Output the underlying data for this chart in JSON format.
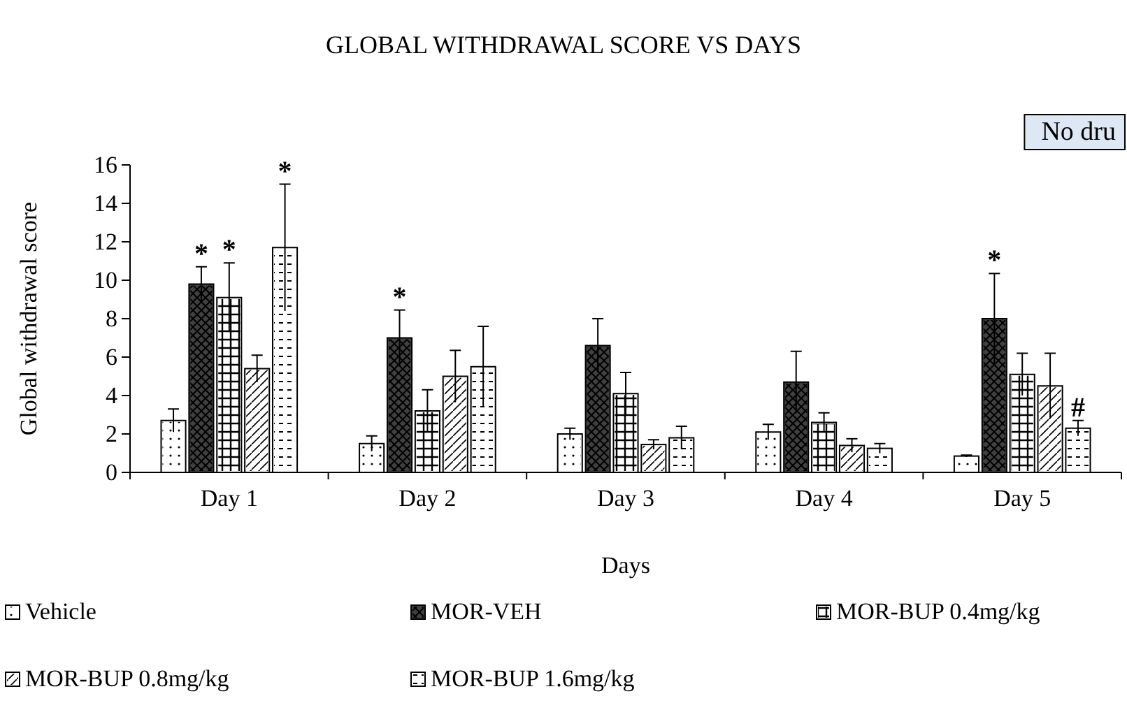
{
  "chart_data": {
    "type": "bar",
    "title": "GLOBAL WITHDRAWAL SCORE VS DAYS",
    "xlabel": "Days",
    "ylabel": "Global withdrawal score",
    "categories": [
      "Day 1",
      "Day 2",
      "Day 3",
      "Day 4",
      "Day 5"
    ],
    "series": [
      {
        "name": "Vehicle",
        "color": "#ffffff",
        "values": [
          2.7,
          1.5,
          2.0,
          2.1,
          0.85
        ],
        "errors": [
          0.6,
          0.4,
          0.3,
          0.4,
          0.05
        ]
      },
      {
        "name": "MOR-VEH",
        "color": "#404040",
        "values": [
          9.8,
          7.0,
          6.6,
          4.7,
          8.0
        ],
        "errors": [
          0.9,
          1.45,
          1.4,
          1.6,
          2.35
        ],
        "value_labels": [
          "*",
          "*",
          null,
          null,
          "*"
        ]
      },
      {
        "name": "MOR-BUP 0.4mg/kg",
        "color": "#ffffff",
        "values": [
          9.1,
          3.2,
          4.1,
          2.6,
          5.1
        ],
        "errors": [
          1.8,
          1.1,
          1.1,
          0.5,
          1.1
        ],
        "value_labels": [
          "*",
          null,
          null,
          null,
          null
        ]
      },
      {
        "name": "MOR-BUP 0.8mg/kg",
        "color": "#ffffff",
        "values": [
          5.4,
          5.0,
          1.45,
          1.4,
          4.5
        ],
        "errors": [
          0.7,
          1.35,
          0.25,
          0.35,
          1.7
        ]
      },
      {
        "name": "MOR-BUP 1.6mg/kg",
        "color": "#ffffff",
        "values": [
          11.7,
          5.5,
          1.8,
          1.25,
          2.3
        ],
        "errors": [
          3.3,
          2.1,
          0.6,
          0.25,
          0.4
        ],
        "value_labels": [
          "*",
          null,
          null,
          null,
          "#"
        ]
      }
    ],
    "ylim": [
      0,
      16
    ],
    "yticks": [
      0,
      2,
      4,
      6,
      8,
      10,
      12,
      14,
      16
    ],
    "grid": false,
    "legend": "bottom",
    "annotations": [
      "No dru"
    ]
  }
}
